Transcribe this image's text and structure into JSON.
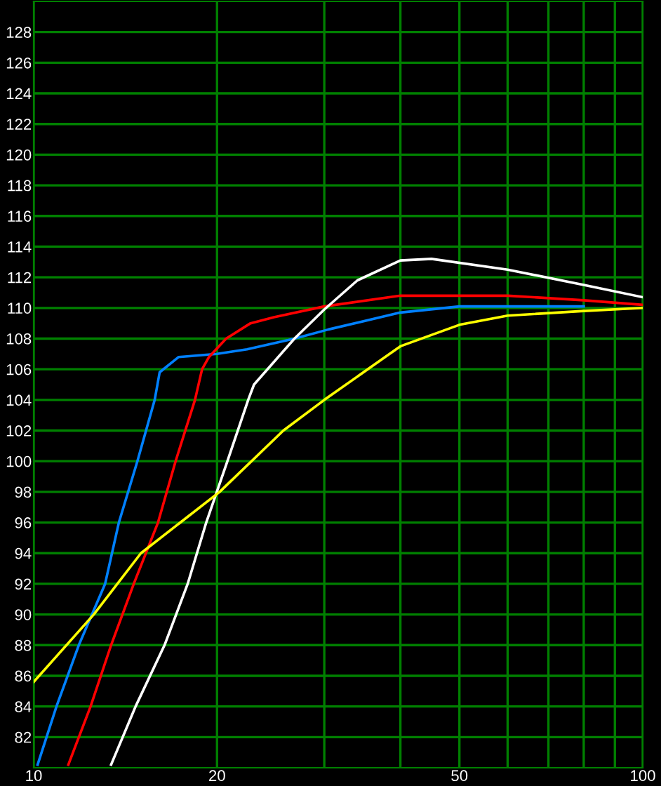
{
  "chart_data": {
    "type": "line",
    "log": "x",
    "grid": true,
    "xlim": [
      10,
      100
    ],
    "ylim": [
      80,
      130
    ],
    "xticks": [
      10,
      20,
      {
        "value": 30,
        "label": null
      },
      {
        "value": 40,
        "label": null
      },
      50,
      {
        "value": 60,
        "label": null
      },
      {
        "value": 70,
        "label": null
      },
      {
        "value": 80,
        "label": null
      },
      {
        "value": 90,
        "label": null
      },
      100
    ],
    "yticks": [
      82,
      84,
      86,
      88,
      90,
      92,
      94,
      96,
      98,
      100,
      102,
      104,
      106,
      108,
      110,
      112,
      114,
      116,
      118,
      120,
      122,
      124,
      126,
      128
    ],
    "series": [
      {
        "color": "#0080ff",
        "x": [
          10.15,
          10.9,
          11.86,
          13.1,
          13.8,
          14.8,
          15.8,
          16.1,
          17.3,
          20,
          22.4,
          26.8,
          30.5,
          40,
          50,
          80
        ],
        "values": [
          80.2,
          84,
          88,
          92,
          96,
          100,
          104,
          105.8,
          106.8,
          107,
          107.3,
          108,
          108.6,
          109.7,
          110.1,
          110.1
        ]
      },
      {
        "color": "#ff0000",
        "x": [
          11.4,
          12.4,
          13.4,
          14.6,
          16.0,
          17.1,
          18.4,
          18.9,
          19.4,
          20.7,
          22.7,
          24.8,
          30,
          40,
          50,
          60,
          80,
          100
        ],
        "values": [
          80.2,
          84,
          88,
          92,
          96,
          100,
          104,
          106,
          106.8,
          108,
          109,
          109.4,
          110.1,
          110.8,
          110.8,
          110.8,
          110.5,
          110.2
        ]
      },
      {
        "color": "#ffffff",
        "x": [
          13.4,
          14.7,
          16.4,
          17.9,
          19.2,
          20.8,
          22.5,
          23.0,
          26.8,
          30,
          34,
          40,
          45,
          60,
          80,
          100
        ],
        "values": [
          80.2,
          84,
          88,
          92,
          96,
          100,
          104,
          105,
          108,
          109.9,
          111.8,
          113.1,
          113.2,
          112.5,
          111.5,
          110.7
        ]
      },
      {
        "color": "#ffff00",
        "x": [
          10,
          12.55,
          15.0,
          20.2,
          25.7,
          30,
          40,
          50,
          60,
          80,
          100
        ],
        "values": [
          85.6,
          90,
          94,
          98,
          102,
          104,
          107.5,
          108.9,
          109.5,
          109.8,
          110.0
        ]
      }
    ]
  }
}
